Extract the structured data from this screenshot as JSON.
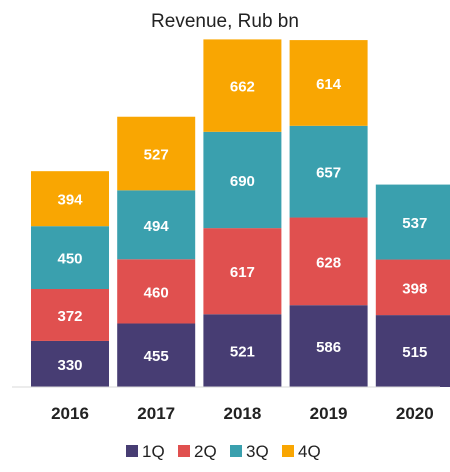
{
  "chart_data": {
    "type": "bar",
    "stacked": true,
    "title": "Revenue, Rub bn",
    "categories": [
      "2016",
      "2017",
      "2018",
      "2019",
      "2020"
    ],
    "series": [
      {
        "name": "1Q",
        "color": "#473d73",
        "values": [
          330,
          455,
          521,
          586,
          515
        ]
      },
      {
        "name": "2Q",
        "color": "#e0504f",
        "values": [
          372,
          460,
          617,
          628,
          398
        ]
      },
      {
        "name": "3Q",
        "color": "#3aa0ae",
        "values": [
          450,
          494,
          690,
          657,
          537
        ]
      },
      {
        "name": "4Q",
        "color": "#f9a602",
        "values": [
          394,
          527,
          662,
          614,
          null
        ]
      }
    ],
    "legend_position": "bottom",
    "grid": false
  }
}
